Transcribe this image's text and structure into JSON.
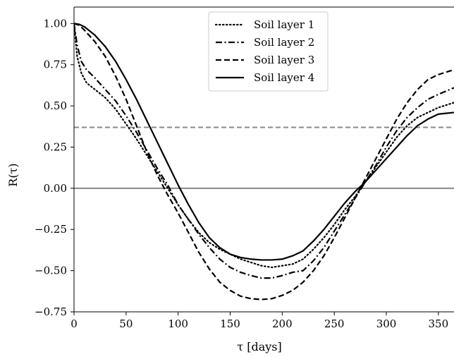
{
  "chart_data": {
    "type": "line",
    "xlabel": "τ [days]",
    "ylabel": "R(τ)",
    "xlim": [
      0,
      365
    ],
    "ylim": [
      -0.75,
      1.1
    ],
    "xticks": [
      0,
      50,
      100,
      150,
      200,
      250,
      300,
      350
    ],
    "xtick_labels": [
      "0",
      "50",
      "100",
      "150",
      "200",
      "250",
      "300",
      "350"
    ],
    "yticks": [
      -0.75,
      -0.5,
      -0.25,
      0.0,
      0.25,
      0.5,
      0.75,
      1.0
    ],
    "ytick_labels": [
      "−0.75",
      "−0.50",
      "−0.25",
      "0.00",
      "0.25",
      "0.50",
      "0.75",
      "1.00"
    ],
    "grid": false,
    "legend_position": "top-center",
    "reference_lines": [
      {
        "y": 0.37,
        "style": "dashed",
        "color": "#888888"
      },
      {
        "y": 0.0,
        "style": "solid",
        "color": "#888888"
      }
    ],
    "series": [
      {
        "name": "Soil layer 1",
        "style": "dotted",
        "color": "#000000",
        "x": [
          0,
          3,
          7,
          12,
          20,
          30,
          40,
          50,
          60,
          70,
          80,
          90,
          100,
          110,
          120,
          130,
          140,
          150,
          160,
          170,
          180,
          190,
          200,
          210,
          220,
          230,
          240,
          250,
          260,
          270,
          280,
          290,
          300,
          310,
          320,
          330,
          340,
          350,
          365
        ],
        "y": [
          1.0,
          0.8,
          0.7,
          0.64,
          0.6,
          0.55,
          0.48,
          0.39,
          0.3,
          0.2,
          0.1,
          0.0,
          -0.1,
          -0.19,
          -0.27,
          -0.33,
          -0.37,
          -0.4,
          -0.43,
          -0.45,
          -0.47,
          -0.48,
          -0.47,
          -0.46,
          -0.43,
          -0.37,
          -0.3,
          -0.22,
          -0.13,
          -0.05,
          0.04,
          0.13,
          0.22,
          0.31,
          0.38,
          0.43,
          0.46,
          0.49,
          0.52
        ]
      },
      {
        "name": "Soil layer 2",
        "style": "dashdot",
        "color": "#000000",
        "x": [
          0,
          3,
          7,
          12,
          20,
          30,
          40,
          50,
          60,
          70,
          80,
          90,
          100,
          110,
          120,
          130,
          140,
          150,
          160,
          170,
          180,
          190,
          200,
          210,
          220,
          230,
          240,
          250,
          260,
          270,
          280,
          290,
          300,
          310,
          320,
          330,
          340,
          350,
          365
        ],
        "y": [
          1.0,
          0.87,
          0.77,
          0.72,
          0.67,
          0.6,
          0.53,
          0.44,
          0.34,
          0.23,
          0.12,
          0.02,
          -0.1,
          -0.19,
          -0.28,
          -0.36,
          -0.43,
          -0.48,
          -0.51,
          -0.53,
          -0.545,
          -0.545,
          -0.53,
          -0.51,
          -0.5,
          -0.44,
          -0.36,
          -0.26,
          -0.16,
          -0.06,
          0.04,
          0.14,
          0.25,
          0.35,
          0.43,
          0.49,
          0.54,
          0.57,
          0.61
        ]
      },
      {
        "name": "Soil layer 3",
        "style": "dashed",
        "color": "#000000",
        "x": [
          0,
          5,
          10,
          20,
          30,
          40,
          50,
          60,
          70,
          80,
          90,
          100,
          110,
          120,
          130,
          140,
          150,
          160,
          170,
          180,
          190,
          200,
          210,
          220,
          230,
          240,
          250,
          260,
          270,
          280,
          290,
          300,
          310,
          320,
          330,
          340,
          350,
          365
        ],
        "y": [
          1.0,
          0.99,
          0.96,
          0.89,
          0.8,
          0.68,
          0.54,
          0.38,
          0.22,
          0.08,
          -0.04,
          -0.15,
          -0.27,
          -0.39,
          -0.49,
          -0.57,
          -0.62,
          -0.655,
          -0.67,
          -0.675,
          -0.67,
          -0.65,
          -0.62,
          -0.57,
          -0.5,
          -0.41,
          -0.3,
          -0.18,
          -0.06,
          0.06,
          0.18,
          0.3,
          0.42,
          0.52,
          0.6,
          0.66,
          0.69,
          0.72
        ]
      },
      {
        "name": "Soil layer 4",
        "style": "solid",
        "color": "#000000",
        "x": [
          0,
          5,
          10,
          20,
          30,
          40,
          50,
          60,
          70,
          80,
          90,
          100,
          110,
          120,
          130,
          140,
          150,
          160,
          170,
          180,
          190,
          200,
          210,
          220,
          230,
          240,
          250,
          260,
          270,
          280,
          290,
          300,
          310,
          320,
          330,
          340,
          350,
          365
        ],
        "y": [
          1.0,
          0.995,
          0.98,
          0.93,
          0.86,
          0.77,
          0.66,
          0.54,
          0.41,
          0.28,
          0.15,
          0.02,
          -0.1,
          -0.21,
          -0.3,
          -0.36,
          -0.4,
          -0.42,
          -0.43,
          -0.435,
          -0.435,
          -0.43,
          -0.41,
          -0.38,
          -0.32,
          -0.25,
          -0.17,
          -0.09,
          -0.02,
          0.04,
          0.11,
          0.18,
          0.25,
          0.32,
          0.38,
          0.42,
          0.45,
          0.46
        ]
      }
    ]
  }
}
